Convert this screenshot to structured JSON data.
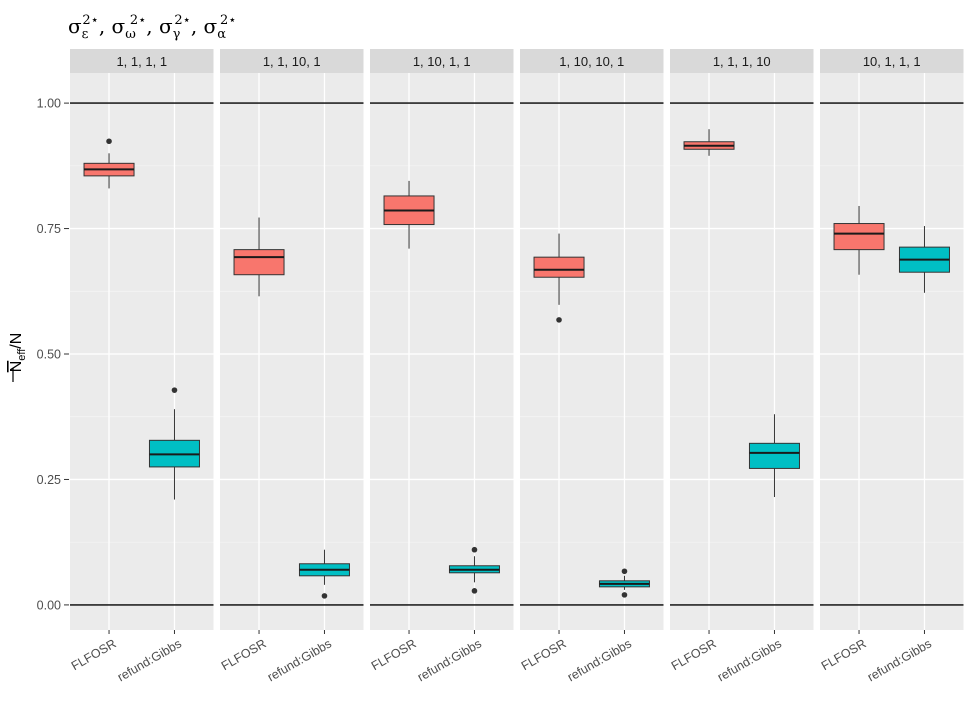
{
  "chart_data": {
    "type": "boxplot",
    "title_parts": [
      {
        "base": "σ",
        "sub": "ε",
        "sup": "2⋆"
      },
      {
        "base": "σ",
        "sub": "ω",
        "sup": "2⋆"
      },
      {
        "base": "σ",
        "sub": "γ",
        "sup": "2⋆"
      },
      {
        "base": "σ",
        "sub": "α",
        "sup": "2⋆"
      }
    ],
    "title_separator": ", ",
    "ylabel": {
      "main": "N",
      "sub": "eff",
      "rest": "/N",
      "overline": true
    },
    "ylim": [
      -0.05,
      1.06
    ],
    "y_ticks": [
      0.0,
      0.25,
      0.5,
      0.75,
      1.0
    ],
    "y_tick_labels": [
      "0.00",
      "0.25",
      "0.50",
      "0.75",
      "1.00"
    ],
    "reference_lines": [
      0,
      1
    ],
    "categories": [
      "FLFOSR",
      "refund:Gibbs"
    ],
    "colors": {
      "FLFOSR": "#F8766D",
      "refund:Gibbs": "#00BFC4"
    },
    "panels": [
      {
        "label": "1, 1, 1, 1",
        "boxes": [
          {
            "method": "FLFOSR",
            "whisker_low": 0.83,
            "q1": 0.855,
            "median": 0.868,
            "q3": 0.88,
            "whisker_high": 0.9,
            "outliers": [
              0.924
            ]
          },
          {
            "method": "refund:Gibbs",
            "whisker_low": 0.21,
            "q1": 0.275,
            "median": 0.3,
            "q3": 0.328,
            "whisker_high": 0.39,
            "outliers": [
              0.428
            ]
          }
        ]
      },
      {
        "label": "1, 1, 10, 1",
        "boxes": [
          {
            "method": "FLFOSR",
            "whisker_low": 0.615,
            "q1": 0.658,
            "median": 0.693,
            "q3": 0.708,
            "whisker_high": 0.772,
            "outliers": []
          },
          {
            "method": "refund:Gibbs",
            "whisker_low": 0.04,
            "q1": 0.058,
            "median": 0.07,
            "q3": 0.082,
            "whisker_high": 0.11,
            "outliers": [
              0.018
            ]
          }
        ]
      },
      {
        "label": "1, 10, 1, 1",
        "boxes": [
          {
            "method": "FLFOSR",
            "whisker_low": 0.71,
            "q1": 0.758,
            "median": 0.786,
            "q3": 0.815,
            "whisker_high": 0.845,
            "outliers": []
          },
          {
            "method": "refund:Gibbs",
            "whisker_low": 0.045,
            "q1": 0.064,
            "median": 0.07,
            "q3": 0.078,
            "whisker_high": 0.097,
            "outliers": [
              0.11,
              0.028
            ]
          }
        ]
      },
      {
        "label": "1, 10, 10, 1",
        "boxes": [
          {
            "method": "FLFOSR",
            "whisker_low": 0.598,
            "q1": 0.653,
            "median": 0.668,
            "q3": 0.693,
            "whisker_high": 0.74,
            "outliers": [
              0.568
            ]
          },
          {
            "method": "refund:Gibbs",
            "whisker_low": 0.03,
            "q1": 0.036,
            "median": 0.042,
            "q3": 0.048,
            "whisker_high": 0.058,
            "outliers": [
              0.067,
              0.02
            ]
          }
        ]
      },
      {
        "label": "1, 1, 1, 10",
        "boxes": [
          {
            "method": "FLFOSR",
            "whisker_low": 0.895,
            "q1": 0.908,
            "median": 0.915,
            "q3": 0.923,
            "whisker_high": 0.948,
            "outliers": []
          },
          {
            "method": "refund:Gibbs",
            "whisker_low": 0.215,
            "q1": 0.272,
            "median": 0.303,
            "q3": 0.322,
            "whisker_high": 0.38,
            "outliers": []
          }
        ]
      },
      {
        "label": "10, 1, 1, 1",
        "boxes": [
          {
            "method": "FLFOSR",
            "whisker_low": 0.658,
            "q1": 0.708,
            "median": 0.74,
            "q3": 0.76,
            "whisker_high": 0.795,
            "outliers": []
          },
          {
            "method": "refund:Gibbs",
            "whisker_low": 0.622,
            "q1": 0.663,
            "median": 0.688,
            "q3": 0.713,
            "whisker_high": 0.755,
            "outliers": []
          }
        ]
      }
    ]
  }
}
